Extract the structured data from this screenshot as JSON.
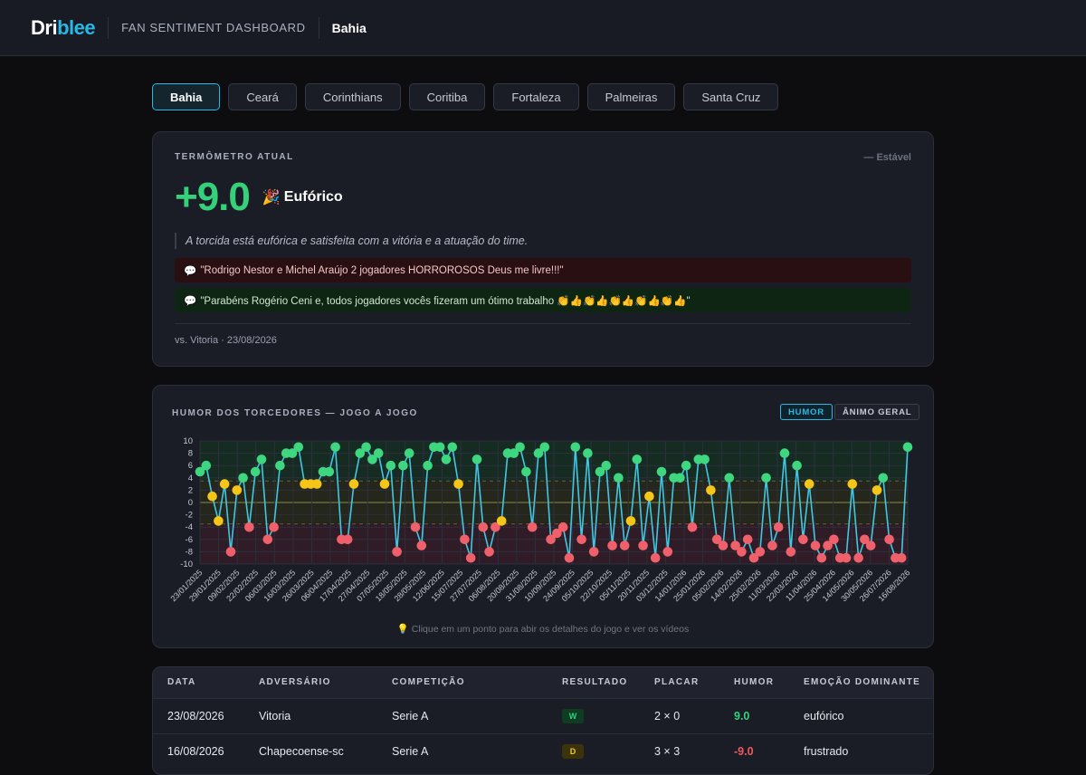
{
  "header": {
    "logo_a": "Dri",
    "logo_b": "blee",
    "subtitle": "FAN SENTIMENT DASHBOARD",
    "team": "Bahia"
  },
  "tabs": [
    {
      "label": "Bahia",
      "active": true
    },
    {
      "label": "Ceará"
    },
    {
      "label": "Corinthians"
    },
    {
      "label": "Coritiba"
    },
    {
      "label": "Fortaleza"
    },
    {
      "label": "Palmeiras"
    },
    {
      "label": "Santa Cruz"
    }
  ],
  "thermo": {
    "label": "TERMÔMETRO ATUAL",
    "trend": "— Estável",
    "score": "+9.0",
    "mood_icon": "🎉",
    "mood": "Eufórico",
    "summary": "A torcida está eufórica e satisfeita com a vitória e a atuação do time.",
    "quotes": [
      {
        "icon": "💬",
        "text": "\"Rodrigo Nestor e Michel Araújo 2 jogadores HORROROSOS Deus me livre!!!\"",
        "tone": "negative"
      },
      {
        "icon": "💬",
        "text": "\"Parabéns Rogério Ceni e, todos jogadores vocês fizeram um ótimo trabalho 👏👍👏👍👏👍👏👍👏👍\"",
        "tone": "positive"
      }
    ],
    "match": "vs. Vitoria · 23/08/2026"
  },
  "mood_chart": {
    "title": "HUMOR DOS TORCEDORES — JOGO A JOGO",
    "toggle_humor": "HUMOR",
    "toggle_animo": "ÂNIMO GERAL",
    "hint": "💡 Clique em um ponto para abir os detalhes do jogo e ver os vídeos"
  },
  "chart_data": {
    "type": "line",
    "ylim": [
      -10,
      10
    ],
    "yticks": [
      10,
      8,
      6,
      4,
      2,
      0,
      -2,
      -4,
      -6,
      -8,
      -10
    ],
    "x_tick_labels": [
      "23/01/2025",
      "29/01/2025",
      "09/02/2025",
      "22/02/2025",
      "06/03/2025",
      "16/03/2025",
      "26/03/2025",
      "06/04/2025",
      "17/04/2025",
      "27/04/2025",
      "07/05/2025",
      "18/05/2025",
      "28/05/2025",
      "12/06/2025",
      "15/07/2025",
      "27/07/2025",
      "06/08/2025",
      "20/08/2025",
      "31/08/2025",
      "10/09/2025",
      "24/09/2025",
      "05/10/2025",
      "22/10/2025",
      "05/11/2025",
      "20/11/2025",
      "03/12/2025",
      "14/01/2026",
      "25/01/2026",
      "05/02/2026",
      "14/02/2026",
      "25/02/2026",
      "11/03/2026",
      "22/03/2026",
      "11/04/2026",
      "25/04/2026",
      "14/05/2026",
      "30/05/2026",
      "26/07/2026",
      "16/08/2026"
    ],
    "values": [
      5,
      6,
      1,
      -3,
      3,
      -8,
      2,
      4,
      -4,
      5,
      7,
      -6,
      -4,
      6,
      8,
      8,
      9,
      3,
      3,
      3,
      5,
      5,
      9,
      -6,
      -6,
      3,
      8,
      9,
      7,
      8,
      3,
      6,
      -8,
      6,
      8,
      -4,
      -7,
      6,
      9,
      9,
      7,
      9,
      3,
      -6,
      -9,
      7,
      -4,
      -8,
      -4,
      -3,
      8,
      8,
      9,
      5,
      -4,
      8,
      9,
      -6,
      -5,
      -4,
      -9,
      9,
      -6,
      8,
      -8,
      5,
      6,
      -7,
      4,
      -7,
      -3,
      7,
      -7,
      1,
      -9,
      5,
      -8,
      4,
      4,
      6,
      -4,
      7,
      7,
      2,
      -6,
      -7,
      4,
      -7,
      -8,
      -6,
      -9,
      -8,
      4,
      -7,
      -4,
      8,
      -8,
      6,
      -6,
      3,
      -7,
      -9,
      -7,
      -6,
      -9,
      -9,
      3,
      -9,
      -6,
      -7,
      2,
      4,
      -6,
      -9,
      -9,
      9
    ],
    "zones": {
      "positive_threshold": 3.5,
      "negative_threshold": -3.5
    },
    "colors": {
      "line": "#3fc8e4",
      "positive": "#3ed67e",
      "neutral": "#f5c518",
      "negative": "#f0606a",
      "grid": "#2c303c"
    }
  },
  "matches": {
    "columns": [
      "DATA",
      "ADVERSÁRIO",
      "COMPETIÇÃO",
      "RESULTADO",
      "PLACAR",
      "HUMOR",
      "EMOÇÃO DOMINANTE"
    ],
    "rows": [
      {
        "date": "23/08/2026",
        "opponent": "Vitoria",
        "competition": "Serie A",
        "result": "W",
        "score": "2 × 0",
        "humor": "9.0",
        "emotion": "eufórico"
      },
      {
        "date": "16/08/2026",
        "opponent": "Chapecoense-sc",
        "competition": "Serie A",
        "result": "D",
        "score": "3 × 3",
        "humor": "-9.0",
        "emotion": "frustrado"
      }
    ]
  }
}
